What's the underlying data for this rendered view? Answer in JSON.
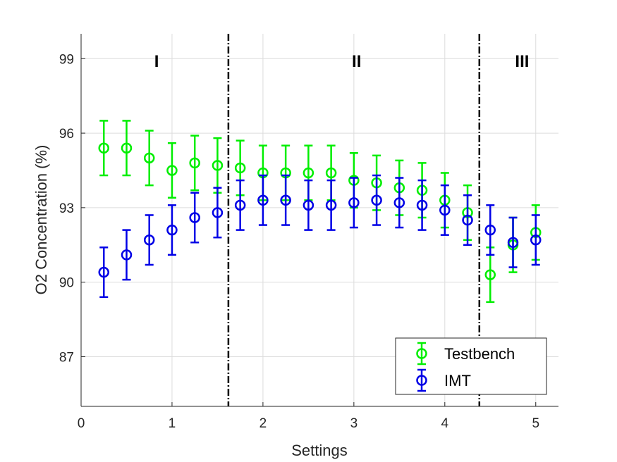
{
  "chart_data": {
    "type": "scatter",
    "xlabel": "Settings",
    "ylabel": "O2 Concentration (%)",
    "xlim": [
      0,
      5.25
    ],
    "ylim": [
      85,
      100
    ],
    "xticks": [
      0,
      1,
      2,
      3,
      4,
      5
    ],
    "yticks": [
      87,
      90,
      93,
      96,
      99
    ],
    "grid": true,
    "legend_position": "bottom-right",
    "regions": [
      {
        "label": "I",
        "x": 0.83
      },
      {
        "label": "II",
        "x": 3.03
      },
      {
        "label": "III",
        "x": 4.85
      }
    ],
    "dividers": [
      1.62,
      4.38
    ],
    "series": [
      {
        "name": "Testbench",
        "color": "#00ee00",
        "x": [
          0.25,
          0.5,
          0.75,
          1.0,
          1.25,
          1.5,
          1.75,
          2.0,
          2.25,
          2.5,
          2.75,
          3.0,
          3.25,
          3.5,
          3.75,
          4.0,
          4.25,
          4.5,
          4.75,
          5.0
        ],
        "y": [
          95.4,
          95.4,
          95.0,
          94.5,
          94.8,
          94.7,
          94.6,
          94.4,
          94.4,
          94.4,
          94.4,
          94.1,
          94.0,
          93.8,
          93.7,
          93.3,
          92.8,
          90.3,
          91.5,
          92.0
        ],
        "err": [
          1.1,
          1.1,
          1.1,
          1.1,
          1.1,
          1.1,
          1.1,
          1.1,
          1.1,
          1.1,
          1.1,
          1.1,
          1.1,
          1.1,
          1.1,
          1.1,
          1.1,
          1.1,
          1.1,
          1.1
        ]
      },
      {
        "name": "IMT",
        "color": "#0000e6",
        "x": [
          0.25,
          0.5,
          0.75,
          1.0,
          1.25,
          1.5,
          1.75,
          2.0,
          2.25,
          2.5,
          2.75,
          3.0,
          3.25,
          3.5,
          3.75,
          4.0,
          4.25,
          4.5,
          4.75,
          5.0
        ],
        "y": [
          90.4,
          91.1,
          91.7,
          92.1,
          92.6,
          92.8,
          93.1,
          93.3,
          93.3,
          93.1,
          93.1,
          93.2,
          93.3,
          93.2,
          93.1,
          92.9,
          92.5,
          92.1,
          91.6,
          91.7
        ],
        "err": [
          1.0,
          1.0,
          1.0,
          1.0,
          1.0,
          1.0,
          1.0,
          1.0,
          1.0,
          1.0,
          1.0,
          1.0,
          1.0,
          1.0,
          1.0,
          1.0,
          1.0,
          1.0,
          1.0,
          1.0
        ]
      }
    ]
  }
}
